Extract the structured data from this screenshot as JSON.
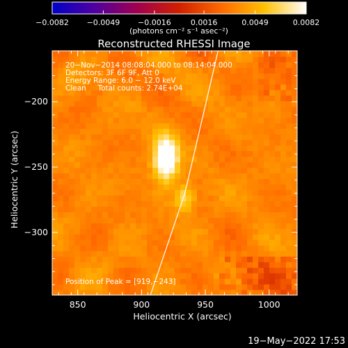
{
  "chart_data": {
    "type": "heatmap",
    "title": "Reconstructed RHESSI Image",
    "xlabel": "Heliocentric X (arcsec)",
    "ylabel": "Heliocentric Y (arcsec)",
    "xlim": [
      830,
      1022
    ],
    "ylim": [
      -348,
      -161
    ],
    "x_ticks": [
      850,
      900,
      950,
      1000
    ],
    "y_ticks": [
      -200,
      -250,
      -300
    ],
    "x_tick_labels": [
      "850",
      "900",
      "950",
      "1000"
    ],
    "y_tick_labels": [
      "−200",
      "−250",
      "−300"
    ],
    "peak": {
      "x": 919,
      "y": -243
    },
    "secondary_source": {
      "x": 934,
      "y": -273
    },
    "limb": [
      [
        907,
        -348
      ],
      [
        934,
        -270
      ],
      [
        960,
        -161
      ]
    ],
    "colorbar": {
      "vmin": -0.0082,
      "vmax": 0.0082,
      "ticks": [
        -0.0082,
        -0.0049,
        -0.0016,
        0.0016,
        0.0049,
        0.0082
      ],
      "tick_labels": [
        "−0.0082",
        "−0.0049",
        "−0.0016",
        "0.0016",
        "0.0049",
        "0.0082"
      ],
      "unit_label": "(photons cm⁻² s⁻¹ asec⁻²)",
      "colormap": [
        "#0000c8",
        "#5000a0",
        "#a00050",
        "#d02000",
        "#ff6a00",
        "#ffc000",
        "#ffffff"
      ]
    },
    "annotations": [
      "20−Nov−2014 08:08:04.000 to 08:14:04.000",
      "Detectors: 3F 6F 9F, Att 0",
      "Energy Range: 6.0 − 12.0 keV",
      "Clean     Total counts: 2.74E+04"
    ],
    "peak_label": "Position of Peak = [919,−243]"
  },
  "footer": {
    "timestamp": "19−May−2022 17:53"
  }
}
